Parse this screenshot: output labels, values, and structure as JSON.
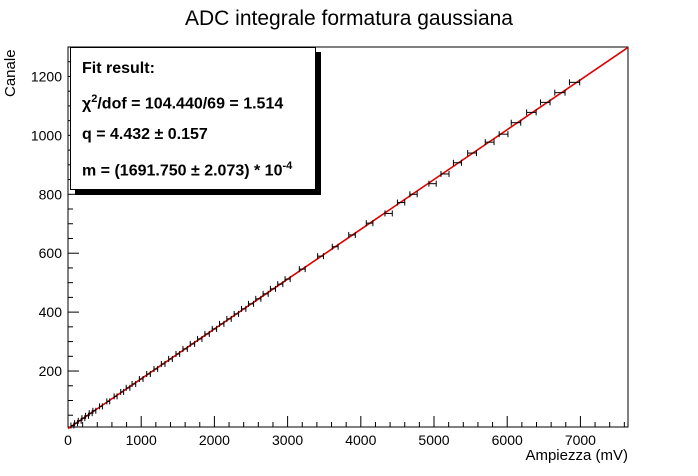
{
  "chart_data": {
    "type": "scatter",
    "title": "ADC integrale formatura gaussiana",
    "xlabel": "Ampiezza (mV)",
    "ylabel": "Canale",
    "xlim": [
      0,
      7650
    ],
    "ylim": [
      10,
      1300
    ],
    "x_ticks": [
      0,
      1000,
      2000,
      3000,
      4000,
      5000,
      6000,
      7000
    ],
    "y_ticks": [
      200,
      400,
      600,
      800,
      1000,
      1200
    ],
    "grid": false,
    "series": [
      {
        "type": "points_with_xerror",
        "color": "#000000",
        "points": [
          {
            "x": 60,
            "y": 15,
            "xerr": 20
          },
          {
            "x": 110,
            "y": 23,
            "xerr": 20
          },
          {
            "x": 160,
            "y": 31,
            "xerr": 20
          },
          {
            "x": 210,
            "y": 40,
            "xerr": 20
          },
          {
            "x": 260,
            "y": 48,
            "xerr": 20
          },
          {
            "x": 310,
            "y": 57,
            "xerr": 20
          },
          {
            "x": 360,
            "y": 65,
            "xerr": 20
          },
          {
            "x": 450,
            "y": 80,
            "xerr": 20
          },
          {
            "x": 550,
            "y": 97,
            "xerr": 20
          },
          {
            "x": 650,
            "y": 114,
            "xerr": 20
          },
          {
            "x": 740,
            "y": 129,
            "xerr": 20
          },
          {
            "x": 820,
            "y": 143,
            "xerr": 25
          },
          {
            "x": 900,
            "y": 156,
            "xerr": 25
          },
          {
            "x": 1000,
            "y": 173,
            "xerr": 25
          },
          {
            "x": 1100,
            "y": 190,
            "xerr": 25
          },
          {
            "x": 1200,
            "y": 207,
            "xerr": 25
          },
          {
            "x": 1300,
            "y": 224,
            "xerr": 25
          },
          {
            "x": 1400,
            "y": 241,
            "xerr": 25
          },
          {
            "x": 1500,
            "y": 258,
            "xerr": 25
          },
          {
            "x": 1600,
            "y": 275,
            "xerr": 30
          },
          {
            "x": 1700,
            "y": 292,
            "xerr": 30
          },
          {
            "x": 1800,
            "y": 309,
            "xerr": 30
          },
          {
            "x": 1900,
            "y": 326,
            "xerr": 30
          },
          {
            "x": 2000,
            "y": 343,
            "xerr": 30
          },
          {
            "x": 2100,
            "y": 360,
            "xerr": 30
          },
          {
            "x": 2200,
            "y": 377,
            "xerr": 30
          },
          {
            "x": 2300,
            "y": 394,
            "xerr": 30
          },
          {
            "x": 2400,
            "y": 411,
            "xerr": 30
          },
          {
            "x": 2500,
            "y": 428,
            "xerr": 35
          },
          {
            "x": 2600,
            "y": 445,
            "xerr": 35
          },
          {
            "x": 2700,
            "y": 462,
            "xerr": 35
          },
          {
            "x": 2800,
            "y": 479,
            "xerr": 35
          },
          {
            "x": 2900,
            "y": 495,
            "xerr": 35
          },
          {
            "x": 3000,
            "y": 512,
            "xerr": 35
          },
          {
            "x": 3200,
            "y": 546,
            "xerr": 40
          },
          {
            "x": 3450,
            "y": 590,
            "xerr": 40
          },
          {
            "x": 3650,
            "y": 622,
            "xerr": 40
          },
          {
            "x": 3880,
            "y": 662,
            "xerr": 45
          },
          {
            "x": 4120,
            "y": 702,
            "xerr": 45
          },
          {
            "x": 4380,
            "y": 735,
            "xerr": 50
          },
          {
            "x": 4550,
            "y": 772,
            "xerr": 50
          },
          {
            "x": 4720,
            "y": 800,
            "xerr": 50
          },
          {
            "x": 4980,
            "y": 836,
            "xerr": 50
          },
          {
            "x": 5150,
            "y": 869,
            "xerr": 55
          },
          {
            "x": 5320,
            "y": 907,
            "xerr": 55
          },
          {
            "x": 5520,
            "y": 940,
            "xerr": 60
          },
          {
            "x": 5760,
            "y": 977,
            "xerr": 60
          },
          {
            "x": 5950,
            "y": 1004,
            "xerr": 60
          },
          {
            "x": 6120,
            "y": 1043,
            "xerr": 65
          },
          {
            "x": 6330,
            "y": 1078,
            "xerr": 65
          },
          {
            "x": 6520,
            "y": 1112,
            "xerr": 65
          },
          {
            "x": 6720,
            "y": 1145,
            "xerr": 70
          },
          {
            "x": 6920,
            "y": 1180,
            "xerr": 70
          }
        ]
      },
      {
        "type": "line",
        "color": "#e00000",
        "x": [
          0,
          7650
        ],
        "y": [
          4.432,
          1298.6
        ]
      }
    ]
  },
  "fit_box": {
    "title": "Fit result:",
    "chi_prefix": "χ",
    "chi_sup": "2",
    "chi_rest": "/dof = 104.440/69 = 1.514",
    "q_line": "q = 4.432 ± 0.157",
    "m_line": "m = (1691.750 ± 2.073) * 10",
    "m_sup": "-4"
  }
}
